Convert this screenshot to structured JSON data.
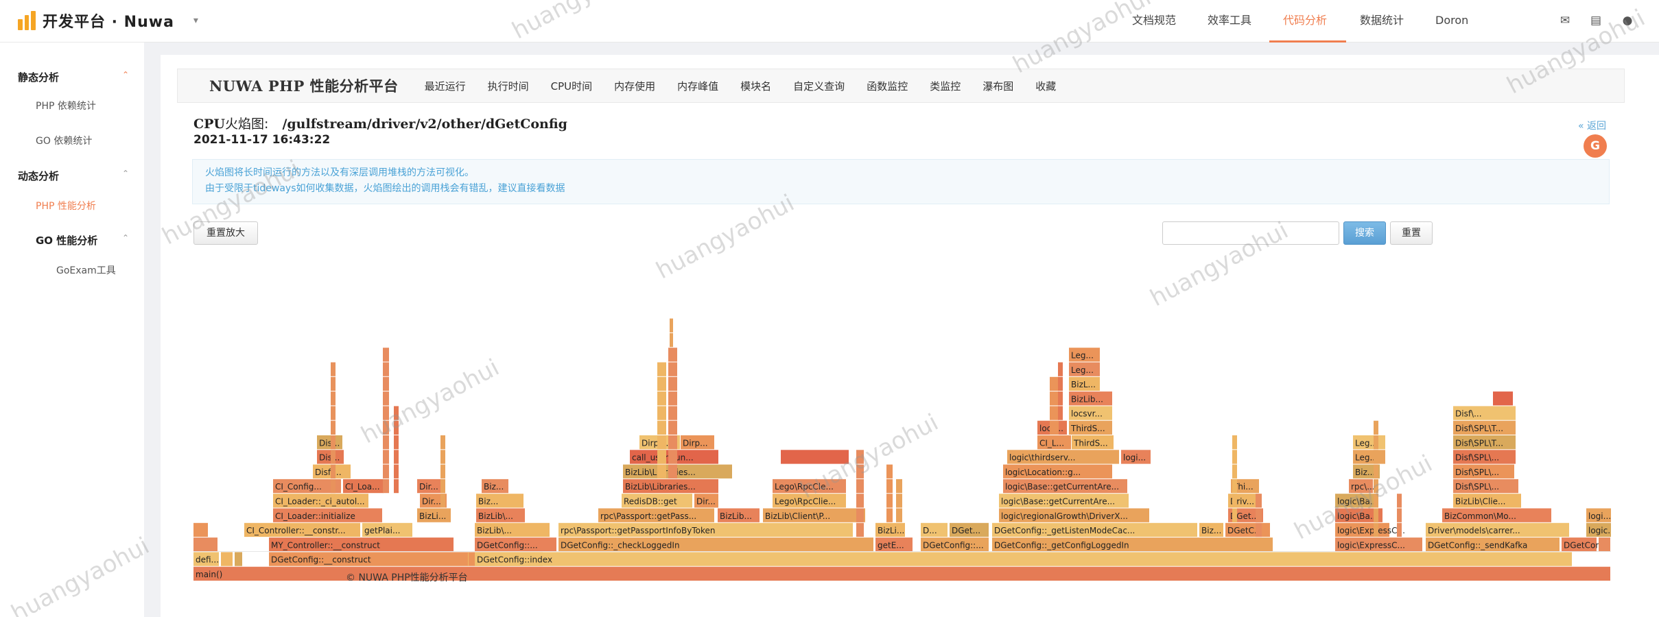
{
  "brand": {
    "name": "开发平台 · Nuwa",
    "caret": "▾"
  },
  "nav": [
    {
      "label": "文档规范",
      "active": false
    },
    {
      "label": "效率工具",
      "active": false
    },
    {
      "label": "代码分析",
      "active": true
    },
    {
      "label": "数据统计",
      "active": false
    },
    {
      "label": "Doron",
      "active": false
    }
  ],
  "header_icons": [
    "mail-icon",
    "document-icon",
    "user-icon"
  ],
  "sidebar": {
    "group1": {
      "label": "静态分析",
      "arrow": "⌃"
    },
    "php_dep": "PHP 依赖统计",
    "go_dep": "GO 依赖统计",
    "group2": {
      "label": "动态分析",
      "arrow": "⌃"
    },
    "php_perf": "PHP 性能分析",
    "go_perf": {
      "label": "GO 性能分析",
      "arrow": "⌃"
    },
    "goexam": "GoExam工具"
  },
  "platform": {
    "title": "NUWA PHP 性能分析平台",
    "tabs": [
      "最近运行",
      "执行时间",
      "CPU时间",
      "内存使用",
      "内存峰值",
      "模块名",
      "自定义查询",
      "函数监控",
      "类监控",
      "瀑布图",
      "收藏"
    ]
  },
  "flamegraph": {
    "title_prefix": "CPU",
    "title_suffix": "火焰图:",
    "path": "/gulfstream/driver/v2/other/dGetConfig",
    "timestamp": "2021-11-17 16:43:22",
    "back_label": "« 返回",
    "back_badge": "G",
    "info_lines": [
      "火焰图将长时间运行的方法以及有深层调用堆栈的方法可视化。",
      "由于受限于tideways如何收集数据，火焰图绘出的调用栈会有错乱，建议直接看数据"
    ],
    "reset_zoom": "重置放大",
    "search_placeholder": "",
    "search_button": "搜索",
    "reset_button": "重置"
  },
  "footer": "© NUWA PHP性能分析平台",
  "watermark": "huangyaohui",
  "colors": {
    "accent": "#f07e4f",
    "info_text": "#4aa2d6",
    "search_btn": "#5a9fd4"
  },
  "flame_labels": [
    "main()",
    "defi...",
    "DGetConfig::__construct",
    "DGetConfig::index",
    "MY_Controller::__construct",
    "CI_Controller::__constr...",
    "getPlai...",
    "CI_Loader::initialize",
    "CI_Loader::_ci_autol...",
    "CI_Config...",
    "CI_Loa...",
    "Disf\\...",
    "Dis...",
    "Dir...",
    "BizLi...",
    "DGetConfig::...",
    "DGetConfig::_checkLoggedIn",
    "BizLib\\...",
    "Biz...",
    "rpc\\Passport::getPassportInfoByToken",
    "rpc\\Passport::getPass...",
    "RedisDB::get",
    "BizLib\\Libraries...",
    "call_user_fun...",
    "Dirpc...",
    "Dirp...",
    "Dir...",
    "BizLib...",
    "BizLib\\Client\\P...",
    "Lego\\RpcCle...",
    "Lego\\RpcClie...",
    "getE...",
    "BizLi...",
    "D...",
    "DGetConfig::...",
    "DGet...",
    "DGetConfig::_getConfigLoggedIn",
    "DGetConfig::_getListenModeCac...",
    "Biz...",
    "DGetC...",
    "logic\\regionalGrowth\\DriverX...",
    "logic\\Base::getCurrentAre...",
    "logic\\Base::getCurrentAre...",
    "logic\\Location::g...",
    "logic\\thirdserv...",
    "logi...",
    "logic...",
    "CI_L...",
    "ThirdS...",
    "locs...",
    "ThirdS...",
    "locsvr...",
    "BizLib...",
    "BizL...",
    "Leg...",
    "Leg...",
    "DGet...",
    "Driv...",
    "Thi...",
    "logic\\ExpressC...",
    "logic\\ExpressC...",
    "logic\\Ba...",
    "logic\\Ba...",
    "rpc\\...",
    "Biz...",
    "Leg...",
    "Leg...",
    "DGetConfig::_sendKafka",
    "Driver\\models\\carrer...",
    "BizCommon\\Mo...",
    "BizLib\\Clie...",
    "Disf\\SPL\\...",
    "Disf\\SPL\\...",
    "Disf\\SPL\\...",
    "Disf\\SPL\\T...",
    "Disf\\SPL\\T...",
    "Disf\\...",
    "DGetCon...",
    "DG...",
    "logic...",
    "logi..."
  ]
}
